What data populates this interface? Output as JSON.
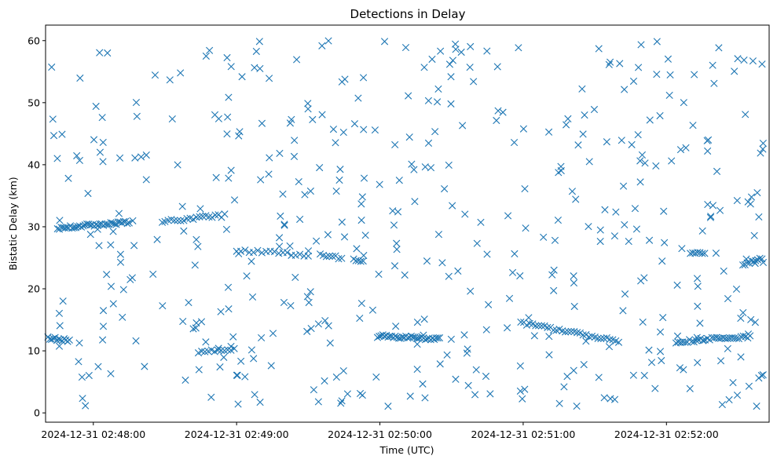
{
  "chart_data": {
    "type": "scatter",
    "title": "Detections in Delay",
    "xlabel": "Time (UTC)",
    "ylabel": "Bistatic Delay (km)",
    "marker": "x",
    "color": "#1f77b4",
    "grid": false,
    "legend": "none",
    "x_axis_type": "datetime",
    "xlim": [
      "2024-12-31 02:47:40",
      "2024-12-31 02:52:43"
    ],
    "ylim": [
      -1.5,
      62.5
    ],
    "xticks": [
      "2024-12-31 02:48:00",
      "2024-12-31 02:49:00",
      "2024-12-31 02:50:00",
      "2024-12-31 02:51:00",
      "2024-12-31 02:52:00"
    ],
    "yticks": [
      0,
      10,
      20,
      30,
      40,
      50,
      60
    ],
    "trails": [
      {
        "from": [
          "2024-12-31 02:47:41",
          12.1
        ],
        "to": [
          "2024-12-31 02:47:50",
          11.7
        ],
        "count": 13
      },
      {
        "from": [
          "2024-12-31 02:47:45",
          29.8
        ],
        "to": [
          "2024-12-31 02:48:15",
          30.8
        ],
        "count": 40
      },
      {
        "from": [
          "2024-12-31 02:48:30",
          31.0
        ],
        "to": [
          "2024-12-31 02:48:55",
          31.8
        ],
        "count": 20
      },
      {
        "from": [
          "2024-12-31 02:48:44",
          9.9
        ],
        "to": [
          "2024-12-31 02:48:59",
          10.3
        ],
        "count": 12
      },
      {
        "from": [
          "2024-12-31 02:49:00",
          26.2
        ],
        "to": [
          "2024-12-31 02:49:30",
          25.4
        ],
        "count": 18
      },
      {
        "from": [
          "2024-12-31 02:49:35",
          25.4
        ],
        "to": [
          "2024-12-31 02:49:44",
          25.0
        ],
        "count": 8
      },
      {
        "from": [
          "2024-12-31 02:49:49",
          24.8
        ],
        "to": [
          "2024-12-31 02:49:53",
          24.5
        ],
        "count": 5
      },
      {
        "from": [
          "2024-12-31 02:49:59",
          12.4
        ],
        "to": [
          "2024-12-31 02:50:25",
          11.9
        ],
        "count": 36
      },
      {
        "from": [
          "2024-12-31 02:50:59",
          14.5
        ],
        "to": [
          "2024-12-31 02:51:40",
          11.5
        ],
        "count": 34
      },
      {
        "from": [
          "2024-12-31 02:52:04",
          11.5
        ],
        "to": [
          "2024-12-31 02:52:35",
          12.3
        ],
        "count": 34
      },
      {
        "from": [
          "2024-12-31 02:52:10",
          25.7
        ],
        "to": [
          "2024-12-31 02:52:16",
          25.6
        ],
        "count": 7
      },
      {
        "from": [
          "2024-12-31 02:52:32",
          24.0
        ],
        "to": [
          "2024-12-31 02:52:40",
          24.8
        ],
        "count": 10
      }
    ],
    "clutter": {
      "t_start": "2024-12-31 02:47:41",
      "t_end": "2024-12-31 02:52:41",
      "y_min": 1.0,
      "y_max": 60.0,
      "count": 470
    }
  }
}
